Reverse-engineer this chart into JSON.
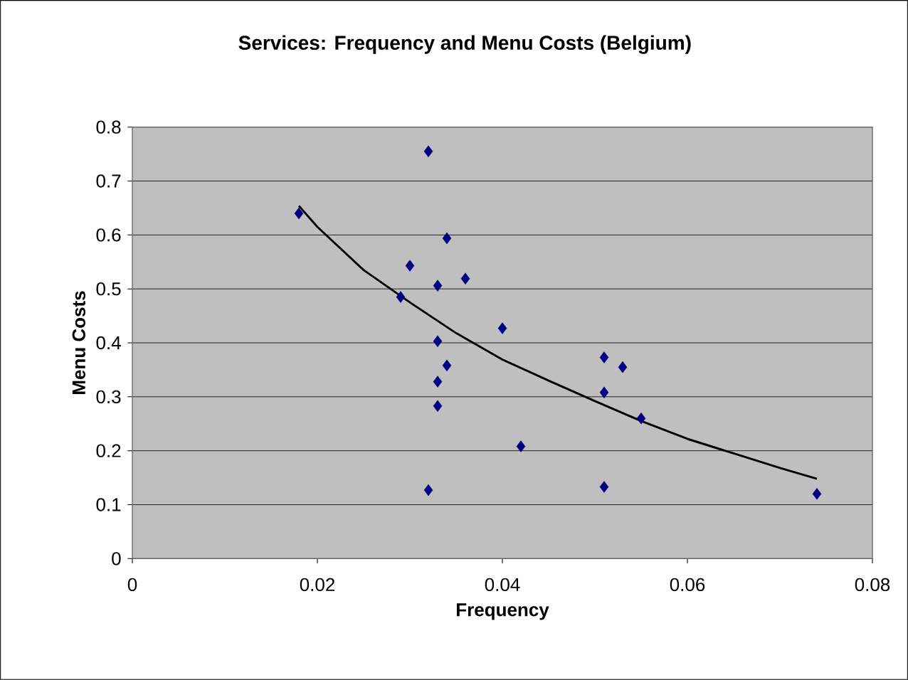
{
  "chart_data": {
    "type": "scatter",
    "title": "Services: Frequency and Menu Costs (Belgium)",
    "xlabel": "Frequency",
    "ylabel": "Menu Costs",
    "xlim": [
      0,
      0.08
    ],
    "xticks": [
      0,
      0.02,
      0.04,
      0.06,
      0.08
    ],
    "ylim": [
      0,
      0.8
    ],
    "yticks": [
      0,
      0.1,
      0.2,
      0.3,
      0.4,
      0.5,
      0.6,
      0.7,
      0.8
    ],
    "grid": "y",
    "series": [
      {
        "marker": "diamond",
        "color": "#000080",
        "x": [
          0.018,
          0.032,
          0.034,
          0.03,
          0.036,
          0.033,
          0.029,
          0.04,
          0.033,
          0.034,
          0.051,
          0.053,
          0.033,
          0.051,
          0.033,
          0.055,
          0.042,
          0.032,
          0.051,
          0.074
        ],
        "values": [
          0.64,
          0.755,
          0.594,
          0.543,
          0.519,
          0.506,
          0.485,
          0.427,
          0.403,
          0.358,
          0.373,
          0.355,
          0.328,
          0.308,
          0.283,
          0.26,
          0.208,
          0.127,
          0.133,
          0.12
        ]
      },
      {
        "type": "line",
        "marker": "none",
        "color": "#000000",
        "x": [
          0.018,
          0.02,
          0.025,
          0.03,
          0.035,
          0.04,
          0.045,
          0.05,
          0.055,
          0.06,
          0.065,
          0.07,
          0.074
        ],
        "values": [
          0.654,
          0.615,
          0.535,
          0.475,
          0.418,
          0.369,
          0.33,
          0.292,
          0.255,
          0.222,
          0.195,
          0.168,
          0.148
        ]
      }
    ]
  }
}
